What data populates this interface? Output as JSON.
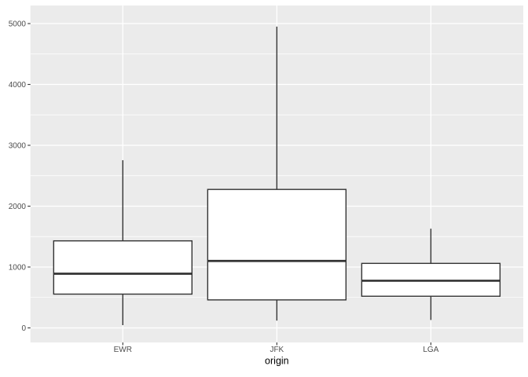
{
  "figure": {
    "background": "#FFFFFF"
  },
  "chart_data": {
    "type": "boxplot",
    "title": "",
    "xlabel": "origin",
    "ylabel": "",
    "categories": [
      "EWR",
      "JFK",
      "LGA"
    ],
    "series": [
      {
        "name": "EWR",
        "whisker_low": 45,
        "q1": 555,
        "median": 890,
        "q3": 1430,
        "whisker_high": 2755
      },
      {
        "name": "JFK",
        "whisker_low": 120,
        "q1": 460,
        "median": 1100,
        "q3": 2275,
        "whisker_high": 4950
      },
      {
        "name": "LGA",
        "whisker_low": 130,
        "q1": 520,
        "median": 775,
        "q3": 1060,
        "whisker_high": 1630
      }
    ],
    "y_ticks": [
      0,
      1000,
      2000,
      3000,
      4000,
      5000
    ],
    "y_tick_labels": [
      "0",
      "1000",
      "2000",
      "3000",
      "4000",
      "5000"
    ],
    "y_minor_gridlines": [
      500,
      1500,
      2500,
      3500,
      4500
    ],
    "ylim": [
      -239,
      5297
    ],
    "grid": "major+minor",
    "legend": "none",
    "outliers_shown": false,
    "theme": {
      "panel_bg": "#EBEBEB",
      "grid_color": "#FFFFFF",
      "box_fill": "#FFFFFF",
      "box_stroke": "#333333",
      "axis_tick_color": "#333333",
      "tick_label_color": "#4D4D4D",
      "axis_title_color": "#000000"
    }
  }
}
